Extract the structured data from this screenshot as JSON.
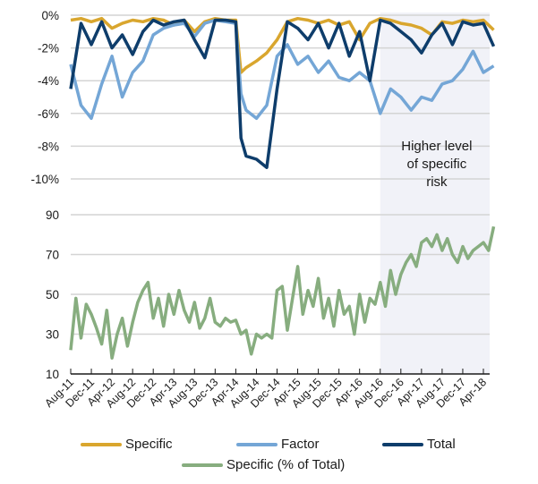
{
  "chart_data": [
    {
      "type": "line",
      "title": "",
      "xlabel": "",
      "ylabel": "",
      "ylim": [
        -10,
        0
      ],
      "yticks": [
        "0%",
        "-2%",
        "-4%",
        "-6%",
        "-8%",
        "-10%"
      ],
      "ytick_values": [
        0,
        -2,
        -4,
        -6,
        -8,
        -10
      ],
      "grid": true,
      "x_range": [
        "2011-08",
        "2018-06"
      ],
      "series": [
        {
          "name": "Specific",
          "color": "#d9a62e",
          "x": [
            "2011-08",
            "2011-10",
            "2011-12",
            "2012-02",
            "2012-04",
            "2012-06",
            "2012-08",
            "2012-10",
            "2012-12",
            "2013-02",
            "2013-04",
            "2013-06",
            "2013-08",
            "2013-10",
            "2013-12",
            "2014-02",
            "2014-04",
            "2014-05",
            "2014-06",
            "2014-08",
            "2014-10",
            "2014-12",
            "2015-02",
            "2015-04",
            "2015-06",
            "2015-08",
            "2015-10",
            "2015-12",
            "2016-02",
            "2016-04",
            "2016-06",
            "2016-08",
            "2016-10",
            "2016-12",
            "2017-02",
            "2017-04",
            "2017-06",
            "2017-08",
            "2017-10",
            "2017-12",
            "2018-02",
            "2018-04",
            "2018-06"
          ],
          "values": [
            -0.3,
            -0.2,
            -0.4,
            -0.2,
            -0.8,
            -0.5,
            -0.3,
            -0.4,
            -0.2,
            -0.3,
            -0.6,
            -0.3,
            -1.0,
            -0.4,
            -0.2,
            -0.3,
            -0.3,
            -3.5,
            -3.2,
            -2.8,
            -2.3,
            -1.5,
            -0.4,
            -0.2,
            -0.3,
            -0.5,
            -0.3,
            -0.6,
            -0.4,
            -1.5,
            -0.5,
            -0.2,
            -0.3,
            -0.5,
            -0.6,
            -0.8,
            -1.2,
            -0.4,
            -0.5,
            -0.3,
            -0.4,
            -0.3,
            -0.9
          ]
        },
        {
          "name": "Factor",
          "color": "#74a6d6",
          "x": [
            "2011-08",
            "2011-10",
            "2011-12",
            "2012-02",
            "2012-04",
            "2012-06",
            "2012-08",
            "2012-10",
            "2012-12",
            "2013-02",
            "2013-04",
            "2013-06",
            "2013-08",
            "2013-10",
            "2013-12",
            "2014-02",
            "2014-04",
            "2014-05",
            "2014-06",
            "2014-08",
            "2014-10",
            "2014-12",
            "2015-02",
            "2015-04",
            "2015-06",
            "2015-08",
            "2015-10",
            "2015-12",
            "2016-02",
            "2016-04",
            "2016-06",
            "2016-08",
            "2016-10",
            "2016-12",
            "2017-02",
            "2017-04",
            "2017-06",
            "2017-08",
            "2017-10",
            "2017-12",
            "2018-02",
            "2018-04",
            "2018-06"
          ],
          "values": [
            -3.0,
            -5.5,
            -6.3,
            -4.2,
            -2.5,
            -5.0,
            -3.5,
            -2.8,
            -1.2,
            -0.8,
            -0.6,
            -0.5,
            -1.3,
            -0.5,
            -0.3,
            -0.4,
            -0.5,
            -4.8,
            -5.8,
            -6.3,
            -5.5,
            -2.5,
            -1.8,
            -3.0,
            -2.5,
            -3.5,
            -2.8,
            -3.8,
            -4.0,
            -3.5,
            -4.0,
            -6.0,
            -4.5,
            -5.0,
            -5.8,
            -5.0,
            -5.2,
            -4.2,
            -4.0,
            -3.3,
            -2.2,
            -3.5,
            -3.1
          ]
        },
        {
          "name": "Total",
          "color": "#0e3d6b",
          "x": [
            "2011-08",
            "2011-10",
            "2011-12",
            "2012-02",
            "2012-04",
            "2012-06",
            "2012-08",
            "2012-10",
            "2012-12",
            "2013-02",
            "2013-04",
            "2013-06",
            "2013-08",
            "2013-10",
            "2013-12",
            "2014-02",
            "2014-04",
            "2014-05",
            "2014-06",
            "2014-08",
            "2014-10",
            "2014-12",
            "2015-02",
            "2015-04",
            "2015-06",
            "2015-08",
            "2015-10",
            "2015-12",
            "2016-02",
            "2016-04",
            "2016-06",
            "2016-08",
            "2016-10",
            "2016-12",
            "2017-02",
            "2017-04",
            "2017-06",
            "2017-08",
            "2017-10",
            "2017-12",
            "2018-02",
            "2018-04",
            "2018-06"
          ],
          "values": [
            -4.5,
            -0.5,
            -1.8,
            -0.4,
            -2.0,
            -1.2,
            -2.4,
            -1.0,
            -0.3,
            -0.6,
            -0.4,
            -0.3,
            -1.5,
            -2.6,
            -0.3,
            -0.3,
            -0.4,
            -7.5,
            -8.6,
            -8.8,
            -9.3,
            -4.5,
            -0.4,
            -0.8,
            -1.5,
            -0.5,
            -2.0,
            -0.5,
            -2.5,
            -1.0,
            -4.0,
            -0.3,
            -0.5,
            -1.0,
            -1.5,
            -2.3,
            -1.2,
            -0.5,
            -1.8,
            -0.4,
            -0.6,
            -0.5,
            -1.9
          ]
        }
      ],
      "annotation": "Higher level of specific risk",
      "shaded_region": [
        "2016-08",
        "2018-06"
      ]
    },
    {
      "type": "line",
      "title": "",
      "xlabel": "",
      "ylabel": "",
      "ylim": [
        10,
        90
      ],
      "yticks": [
        "90",
        "70",
        "50",
        "30",
        "10"
      ],
      "ytick_values": [
        90,
        70,
        50,
        30,
        10
      ],
      "grid": true,
      "xtick_labels": [
        "Aug-11",
        "Dec-11",
        "Apr-12",
        "Aug-12",
        "Dec-12",
        "Apr-13",
        "Aug-13",
        "Dec-13",
        "Apr-14",
        "Aug-14",
        "Dec-14",
        "Apr-15",
        "Aug-15",
        "Dec-15",
        "Apr-16",
        "Aug-16",
        "Dec-16",
        "Apr-17",
        "Aug-17",
        "Dec-17",
        "Apr-18"
      ],
      "series": [
        {
          "name": "Specific (% of Total)",
          "color": "#87ad7f",
          "x": [
            "2011-08",
            "2011-09",
            "2011-10",
            "2011-11",
            "2011-12",
            "2012-01",
            "2012-02",
            "2012-03",
            "2012-04",
            "2012-05",
            "2012-06",
            "2012-07",
            "2012-08",
            "2012-09",
            "2012-10",
            "2012-11",
            "2012-12",
            "2013-01",
            "2013-02",
            "2013-03",
            "2013-04",
            "2013-05",
            "2013-06",
            "2013-07",
            "2013-08",
            "2013-09",
            "2013-10",
            "2013-11",
            "2013-12",
            "2014-01",
            "2014-02",
            "2014-03",
            "2014-04",
            "2014-05",
            "2014-06",
            "2014-07",
            "2014-08",
            "2014-09",
            "2014-10",
            "2014-11",
            "2014-12",
            "2015-01",
            "2015-02",
            "2015-03",
            "2015-04",
            "2015-05",
            "2015-06",
            "2015-07",
            "2015-08",
            "2015-09",
            "2015-10",
            "2015-11",
            "2015-12",
            "2016-01",
            "2016-02",
            "2016-03",
            "2016-04",
            "2016-05",
            "2016-06",
            "2016-07",
            "2016-08",
            "2016-09",
            "2016-10",
            "2016-11",
            "2016-12",
            "2017-01",
            "2017-02",
            "2017-03",
            "2017-04",
            "2017-05",
            "2017-06",
            "2017-07",
            "2017-08",
            "2017-09",
            "2017-10",
            "2017-11",
            "2017-12",
            "2018-01",
            "2018-02",
            "2018-03",
            "2018-04",
            "2018-05",
            "2018-06"
          ],
          "values": [
            22,
            48,
            28,
            45,
            40,
            33,
            25,
            42,
            18,
            30,
            38,
            24,
            36,
            46,
            52,
            56,
            38,
            48,
            34,
            50,
            40,
            52,
            42,
            36,
            46,
            33,
            38,
            48,
            36,
            34,
            38,
            36,
            37,
            30,
            32,
            20,
            30,
            28,
            30,
            28,
            52,
            54,
            32,
            48,
            64,
            40,
            52,
            44,
            58,
            38,
            48,
            34,
            52,
            40,
            44,
            30,
            50,
            36,
            48,
            45,
            56,
            44,
            62,
            50,
            60,
            66,
            70,
            64,
            76,
            78,
            74,
            80,
            72,
            78,
            70,
            66,
            74,
            68,
            72,
            74,
            76,
            72,
            84
          ]
        }
      ]
    }
  ],
  "legend": {
    "items": [
      {
        "label": "Specific",
        "color": "#d9a62e"
      },
      {
        "label": "Factor",
        "color": "#74a6d6"
      },
      {
        "label": "Total",
        "color": "#0e3d6b"
      },
      {
        "label": "Specific (% of Total)",
        "color": "#87ad7f"
      }
    ]
  },
  "colors": {
    "grid": "#d4d4d4",
    "axis": "#1a1a1a",
    "shade": "#f1f2f8"
  }
}
